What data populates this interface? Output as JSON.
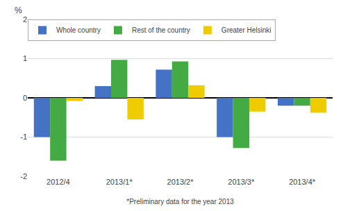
{
  "chart_data": {
    "type": "bar",
    "categories": [
      "2012/4",
      "2013/1*",
      "2013/2*",
      "2013/3*",
      "2013/4*"
    ],
    "series": [
      {
        "name": "Whole country",
        "color": "#4472c4",
        "values": [
          -1.0,
          0.3,
          0.72,
          -1.0,
          -0.2
        ]
      },
      {
        "name": "Rest of the country",
        "color": "#44aa44",
        "values": [
          -1.6,
          0.97,
          0.93,
          -1.28,
          -0.2
        ]
      },
      {
        "name": "Greater Helsinki",
        "color": "#eecc00",
        "values": [
          -0.08,
          -0.55,
          0.32,
          -0.35,
          -0.38
        ]
      }
    ],
    "ylabel": "%",
    "xlabel": "*Preliminary data for the year 2013",
    "ylim": [
      -2,
      2
    ],
    "yticks": [
      -2,
      -1,
      0,
      1,
      2
    ],
    "grid": true,
    "legend": "upper left"
  }
}
